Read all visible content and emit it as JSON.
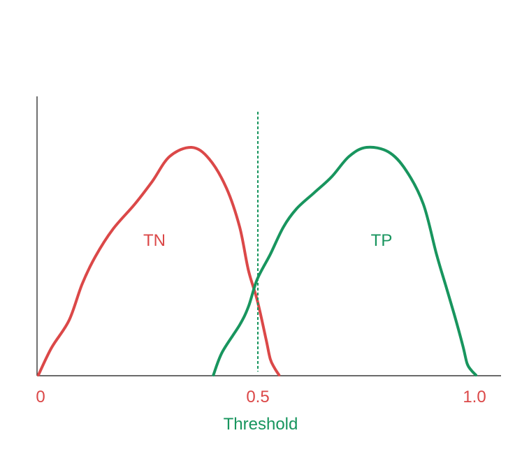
{
  "colors": {
    "negative": "#db4848",
    "positive": "#18955e",
    "axis": "#111111",
    "background": "#ffffff"
  },
  "labels": {
    "negative_curve": "TN",
    "positive_curve": "TP",
    "tick_zero": "0",
    "tick_half": "0.5",
    "tick_one": "1.0",
    "x_axis": "Threshold"
  },
  "chart_data": {
    "type": "area",
    "x_range": [
      0,
      1.0
    ],
    "threshold_value": 0.5,
    "threshold_line_style": "dashed",
    "series": [
      {
        "name": "TN",
        "color": "#db4848",
        "x": [
          0.0,
          0.03,
          0.07,
          0.1,
          0.13,
          0.17,
          0.22,
          0.26,
          0.3,
          0.35,
          0.39,
          0.43,
          0.46,
          0.48,
          0.5,
          0.52,
          0.53,
          0.54,
          0.55
        ],
        "y": [
          0.0,
          0.12,
          0.24,
          0.4,
          0.52,
          0.64,
          0.75,
          0.85,
          0.96,
          1.0,
          0.95,
          0.82,
          0.65,
          0.46,
          0.33,
          0.16,
          0.07,
          0.03,
          0.0
        ]
      },
      {
        "name": "TP",
        "color": "#18955e",
        "x": [
          0.4,
          0.42,
          0.46,
          0.48,
          0.5,
          0.53,
          0.56,
          0.59,
          0.63,
          0.67,
          0.71,
          0.75,
          0.8,
          0.84,
          0.88,
          0.91,
          0.93,
          0.95,
          0.97,
          0.98,
          0.99,
          1.0
        ],
        "y": [
          0.0,
          0.1,
          0.22,
          0.3,
          0.42,
          0.53,
          0.65,
          0.73,
          0.8,
          0.87,
          0.96,
          1.0,
          0.98,
          0.9,
          0.75,
          0.53,
          0.4,
          0.27,
          0.13,
          0.05,
          0.02,
          0.0
        ]
      }
    ]
  }
}
